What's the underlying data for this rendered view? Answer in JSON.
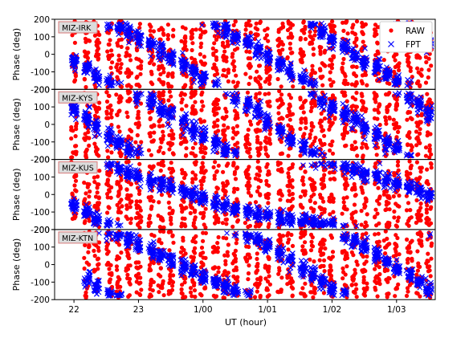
{
  "chart_data": {
    "type": "scatter",
    "xlabel": "UT (hour)",
    "x_ticks": [
      "22",
      "23",
      "1/00",
      "1/01",
      "1/02",
      "1/03"
    ],
    "x_tick_hours": [
      22,
      23,
      24,
      25,
      26,
      27
    ],
    "xlim_hours": [
      21.7,
      27.6
    ],
    "ylabel": "Phase (deg)",
    "ylim": [
      -200,
      200
    ],
    "y_ticks": [
      -200,
      -100,
      0,
      100,
      200
    ],
    "legend": {
      "placement": "top-right",
      "entries": [
        "RAW",
        "FPT"
      ]
    },
    "series_styles": {
      "RAW": {
        "marker": "circle",
        "color": "#ff0000"
      },
      "FPT": {
        "marker": "x",
        "color": "#0000ff"
      }
    },
    "scan_hours": [
      22.0,
      22.2,
      22.35,
      22.55,
      22.7,
      22.85,
      23.0,
      23.2,
      23.35,
      23.5,
      23.7,
      23.85,
      24.0,
      24.2,
      24.35,
      24.5,
      24.7,
      24.85,
      25.0,
      25.2,
      25.35,
      25.55,
      25.7,
      25.85,
      26.0,
      26.2,
      26.35,
      26.5,
      26.7,
      26.85,
      27.0,
      27.2,
      27.35,
      27.5
    ],
    "panels": [
      {
        "label": "MIZ-IRK",
        "fpt_phase": [
          -40,
          -80,
          -130,
          -170,
          160,
          120,
          90,
          60,
          20,
          -20,
          -60,
          -100,
          -140,
          -180,
          140,
          100,
          60,
          20,
          -20,
          -60,
          -100,
          -140,
          180,
          130,
          80,
          40,
          0,
          -40,
          -80,
          -120,
          -160,
          160,
          110,
          60
        ],
        "fpt_spread": 35
      },
      {
        "label": "MIZ-KYS",
        "fpt_phase": [
          90,
          40,
          -10,
          -60,
          -110,
          -150,
          170,
          130,
          90,
          50,
          10,
          -30,
          -70,
          -110,
          -150,
          170,
          120,
          70,
          20,
          -30,
          -80,
          -130,
          -170,
          140,
          100,
          60,
          20,
          -20,
          -60,
          -100,
          -140,
          160,
          110,
          60
        ],
        "fpt_spread": 40
      },
      {
        "label": "MIZ-KUS",
        "fpt_phase": [
          -60,
          -100,
          -140,
          -180,
          150,
          120,
          100,
          80,
          60,
          40,
          20,
          0,
          -20,
          -40,
          -60,
          -80,
          -100,
          -110,
          -120,
          -130,
          -140,
          -150,
          -160,
          -170,
          180,
          160,
          140,
          120,
          100,
          80,
          60,
          40,
          20,
          0
        ],
        "fpt_spread": 30
      },
      {
        "label": "MIZ-KTN",
        "fpt_phase": [
          null,
          -80,
          -130,
          -170,
          170,
          140,
          110,
          80,
          50,
          20,
          -10,
          -40,
          -70,
          -100,
          -130,
          -160,
          170,
          140,
          100,
          60,
          20,
          -20,
          -60,
          -100,
          -140,
          180,
          140,
          100,
          60,
          20,
          -20,
          -60,
          -100,
          -140
        ],
        "fpt_spread": 35
      }
    ]
  }
}
